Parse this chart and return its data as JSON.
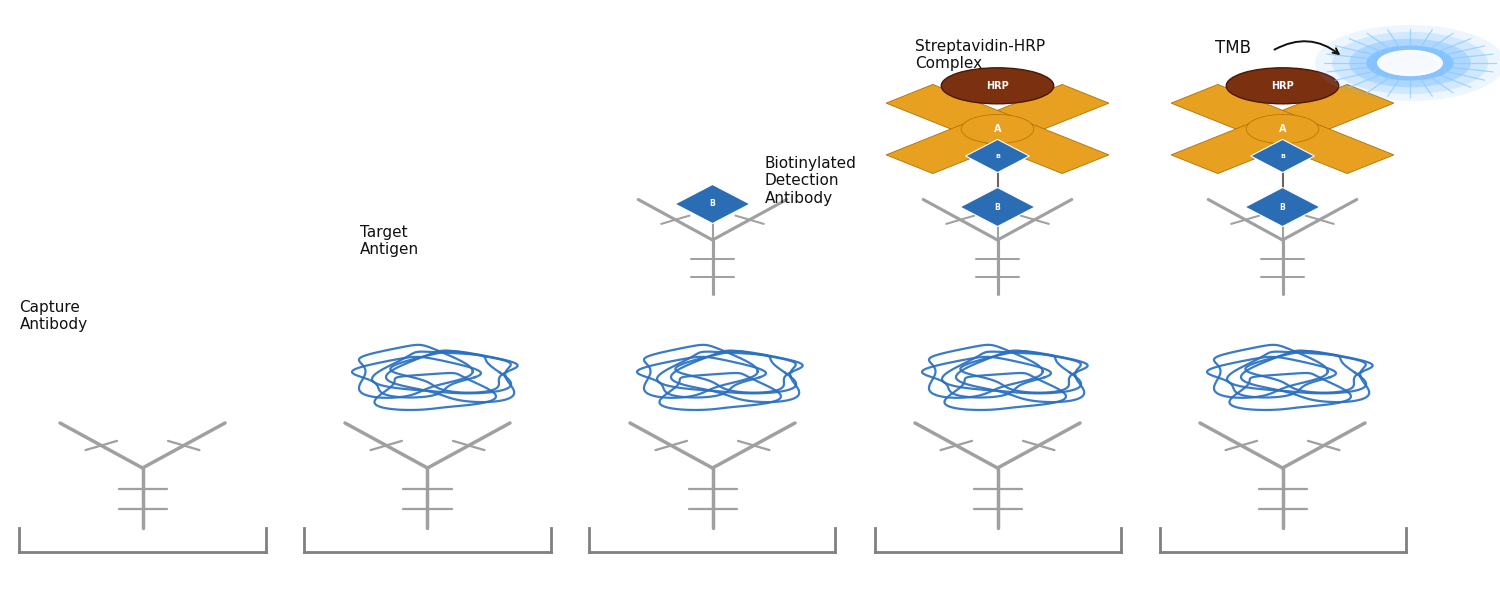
{
  "background_color": "#ffffff",
  "panel_labels": [
    "Capture\nAntibody",
    "Target\nAntigen",
    "Biotinylated\nDetection\nAntibody",
    "Streptavidin-HRP\nComplex",
    "TMB"
  ],
  "antibody_color": "#a0a0a0",
  "antigen_color": "#2a70c0",
  "biotin_color": "#2a6db5",
  "streptavidin_color": "#e8a020",
  "hrp_color": "#7b3010",
  "tmb_color": "#1a90ff",
  "surface_color": "#808080",
  "text_color": "#111111",
  "font_size": 11,
  "panels": [
    0.095,
    0.285,
    0.475,
    0.665,
    0.855
  ]
}
